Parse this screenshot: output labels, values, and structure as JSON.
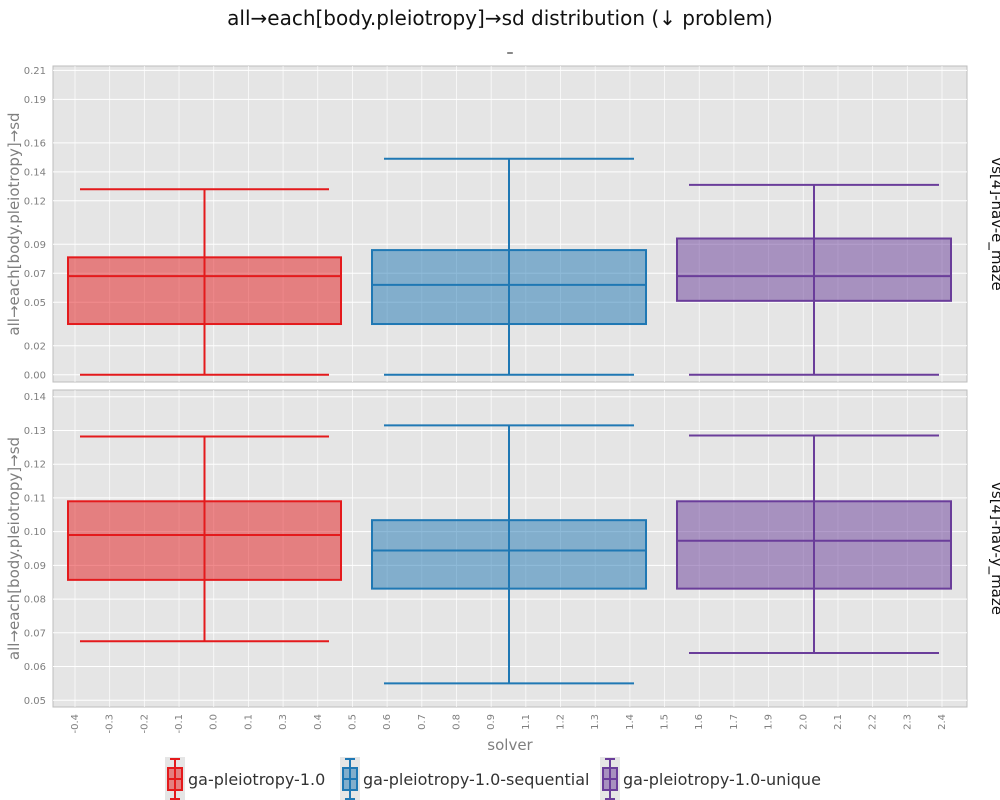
{
  "chart_data": {
    "type": "box",
    "title": "all→each[body.pleiotropy]→sd distribution (↓ problem)",
    "subtitle": "–",
    "xlabel": "solver",
    "ylabel": "all→each[body.pleiotropy]→sd",
    "x_ticks": [
      "-0.4",
      "-0.3",
      "-0.2",
      "-0.1",
      "0.0",
      "0.1",
      "0.3",
      "0.4",
      "0.5",
      "0.6",
      "0.7",
      "0.8",
      "0.9",
      "1.1",
      "1.2",
      "1.3",
      "1.4",
      "1.5",
      "1.6",
      "1.7",
      "1.9",
      "2.0",
      "2.1",
      "2.2",
      "2.3",
      "2.4"
    ],
    "series": [
      {
        "name": "ga-pleiotropy-1.0",
        "color": "#e41a1c"
      },
      {
        "name": "ga-pleiotropy-1.0-sequential",
        "color": "#1f78b4"
      },
      {
        "name": "ga-pleiotropy-1.0-unique",
        "color": "#6a3d9a"
      }
    ],
    "panels": [
      {
        "facet": "vs[4]-nav-e_maze",
        "ylim": [
          -0.005,
          0.213
        ],
        "y_ticks": [
          "0.00",
          "0.02",
          "0.05",
          "0.07",
          "0.09",
          "0.12",
          "0.14",
          "0.16",
          "0.19",
          "0.21"
        ],
        "grid": true,
        "boxes": [
          {
            "series": "ga-pleiotropy-1.0",
            "min": 0.0,
            "q1": 0.035,
            "median": 0.068,
            "q3": 0.081,
            "max": 0.128
          },
          {
            "series": "ga-pleiotropy-1.0-sequential",
            "min": 0.0,
            "q1": 0.035,
            "median": 0.062,
            "q3": 0.086,
            "max": 0.149
          },
          {
            "series": "ga-pleiotropy-1.0-unique",
            "min": 0.0,
            "q1": 0.051,
            "median": 0.068,
            "q3": 0.094,
            "max": 0.131
          }
        ]
      },
      {
        "facet": "vs[4]-nav-y_maze",
        "ylim": [
          0.048,
          0.142
        ],
        "y_ticks": [
          "0.05",
          "0.06",
          "0.07",
          "0.08",
          "0.09",
          "0.10",
          "0.11",
          "0.12",
          "0.13",
          "0.14"
        ],
        "grid": true,
        "boxes": [
          {
            "series": "ga-pleiotropy-1.0",
            "min": 0.0675,
            "q1": 0.0857,
            "median": 0.099,
            "q3": 0.109,
            "max": 0.1282
          },
          {
            "series": "ga-pleiotropy-1.0-sequential",
            "min": 0.055,
            "q1": 0.0831,
            "median": 0.0944,
            "q3": 0.1034,
            "max": 0.1315
          },
          {
            "series": "ga-pleiotropy-1.0-unique",
            "min": 0.064,
            "q1": 0.0831,
            "median": 0.0973,
            "q3": 0.109,
            "max": 0.1285
          }
        ]
      }
    ],
    "legend_position": "bottom"
  }
}
